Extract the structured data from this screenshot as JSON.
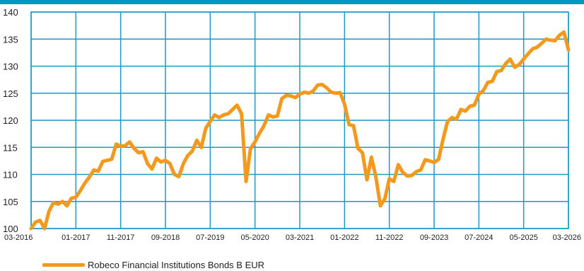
{
  "colors": {
    "accent_top": "#0099c4",
    "grid": "#1b9ac6",
    "plot_border": "#1b9ac6",
    "series_line": "#f39a1e"
  },
  "chart_data": {
    "type": "line",
    "title": "",
    "xlabel": "",
    "ylabel": "",
    "ylim": [
      100,
      140
    ],
    "yticks": [
      100,
      105,
      110,
      115,
      120,
      125,
      130,
      135,
      140
    ],
    "xtick_labels": [
      "03-2016",
      "01-2017",
      "11-2017",
      "09-2018",
      "07-2019",
      "05-2020",
      "03-2021",
      "01-2022",
      "11-2022",
      "09-2023",
      "07-2024",
      "05-2025",
      "03-2026"
    ],
    "grid": true,
    "legend_position": "bottom-left",
    "series": [
      {
        "name": "Robeco Financial Institutions Bonds B EUR",
        "x": [
          "2016-03",
          "2016-04",
          "2016-05",
          "2016-06",
          "2016-07",
          "2016-08",
          "2016-09",
          "2016-10",
          "2016-11",
          "2016-12",
          "2017-01",
          "2017-02",
          "2017-03",
          "2017-04",
          "2017-05",
          "2017-06",
          "2017-07",
          "2017-08",
          "2017-09",
          "2017-10",
          "2017-11",
          "2017-12",
          "2018-01",
          "2018-02",
          "2018-03",
          "2018-04",
          "2018-05",
          "2018-06",
          "2018-07",
          "2018-08",
          "2018-09",
          "2018-10",
          "2018-11",
          "2018-12",
          "2019-01",
          "2019-02",
          "2019-03",
          "2019-04",
          "2019-05",
          "2019-06",
          "2019-07",
          "2019-08",
          "2019-09",
          "2019-10",
          "2019-11",
          "2019-12",
          "2020-01",
          "2020-02",
          "2020-03",
          "2020-04",
          "2020-05",
          "2020-06",
          "2020-07",
          "2020-08",
          "2020-09",
          "2020-10",
          "2020-11",
          "2020-12",
          "2021-01",
          "2021-02",
          "2021-03",
          "2021-04",
          "2021-05",
          "2021-06",
          "2021-07",
          "2021-08",
          "2021-09",
          "2021-10",
          "2021-11",
          "2021-12",
          "2022-01",
          "2022-02",
          "2022-03",
          "2022-04",
          "2022-05",
          "2022-06",
          "2022-07",
          "2022-08",
          "2022-09",
          "2022-10",
          "2022-11",
          "2022-12",
          "2023-01",
          "2023-02",
          "2023-03",
          "2023-04",
          "2023-05",
          "2023-06",
          "2023-07",
          "2023-08",
          "2023-09",
          "2023-10",
          "2023-11",
          "2023-12",
          "2024-01",
          "2024-02",
          "2024-03",
          "2024-04",
          "2024-05",
          "2024-06",
          "2024-07",
          "2024-08",
          "2024-09",
          "2024-10",
          "2024-11",
          "2024-12",
          "2025-01",
          "2025-02",
          "2025-03",
          "2025-04",
          "2025-05",
          "2025-06",
          "2025-07",
          "2025-08",
          "2025-09",
          "2025-10",
          "2025-11",
          "2025-12",
          "2026-01",
          "2026-02",
          "2026-03"
        ],
        "values": [
          100.0,
          101.2,
          101.5,
          100.0,
          103.2,
          104.8,
          104.5,
          105.0,
          104.2,
          105.6,
          105.8,
          107.0,
          108.4,
          109.5,
          110.8,
          110.6,
          112.4,
          112.6,
          112.8,
          115.6,
          115.2,
          115.3,
          116.0,
          114.8,
          114.0,
          114.2,
          112.0,
          111.0,
          113.0,
          112.3,
          112.6,
          112.0,
          110.0,
          109.6,
          112.0,
          113.5,
          114.3,
          116.3,
          115.0,
          118.5,
          119.8,
          121.0,
          120.5,
          121.0,
          121.2,
          122.0,
          122.8,
          121.2,
          108.7,
          114.8,
          116.0,
          117.6,
          119.0,
          121.0,
          120.6,
          120.8,
          124.0,
          124.6,
          124.5,
          124.2,
          124.8,
          125.2,
          125.0,
          125.4,
          126.5,
          126.6,
          126.0,
          125.2,
          125.0,
          125.1,
          123.0,
          119.2,
          119.0,
          114.8,
          114.0,
          109.0,
          113.2,
          109.5,
          104.2,
          105.5,
          109.2,
          108.7,
          111.8,
          110.4,
          109.7,
          109.8,
          110.5,
          110.8,
          112.7,
          112.5,
          112.2,
          112.8,
          116.5,
          119.8,
          120.5,
          120.2,
          122.0,
          121.7,
          122.6,
          122.8,
          124.8,
          125.5,
          127.0,
          127.2,
          129.0,
          129.2,
          130.5,
          131.3,
          129.8,
          130.3,
          131.3,
          132.3,
          133.2,
          133.5,
          134.2,
          135.0,
          134.8,
          134.7,
          135.7,
          136.3,
          133.0
        ]
      }
    ]
  }
}
